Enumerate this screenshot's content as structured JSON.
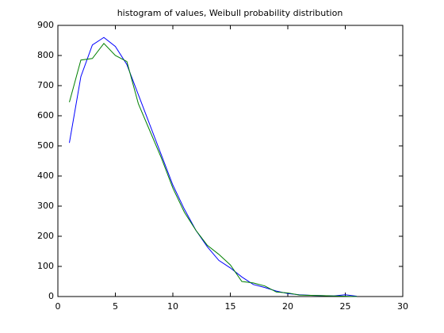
{
  "chart_data": {
    "type": "line",
    "title": "histogram of values, Weibull probability distribution",
    "x": [
      1,
      2,
      3,
      4,
      5,
      6,
      7,
      8,
      9,
      10,
      11,
      12,
      13,
      14,
      15,
      16,
      17,
      18,
      19,
      20,
      21,
      22,
      23,
      24,
      25,
      26
    ],
    "series": [
      {
        "color": "#0000ff",
        "values": [
          510,
          730,
          835,
          860,
          830,
          770,
          670,
          570,
          470,
          370,
          290,
          220,
          165,
          120,
          95,
          65,
          40,
          30,
          18,
          10,
          6,
          4,
          3,
          2,
          6,
          1
        ]
      },
      {
        "color": "#008000",
        "values": [
          645,
          785,
          790,
          840,
          800,
          780,
          640,
          550,
          460,
          360,
          280,
          220,
          170,
          140,
          105,
          50,
          45,
          35,
          15,
          12,
          5,
          4,
          3,
          2,
          1,
          0
        ]
      }
    ],
    "xlim": [
      0,
      30
    ],
    "xticks": [
      0,
      5,
      10,
      15,
      20,
      25,
      30
    ],
    "ylim": [
      0,
      900
    ],
    "yticks": [
      0,
      100,
      200,
      300,
      400,
      500,
      600,
      700,
      800,
      900
    ],
    "grid": false
  }
}
